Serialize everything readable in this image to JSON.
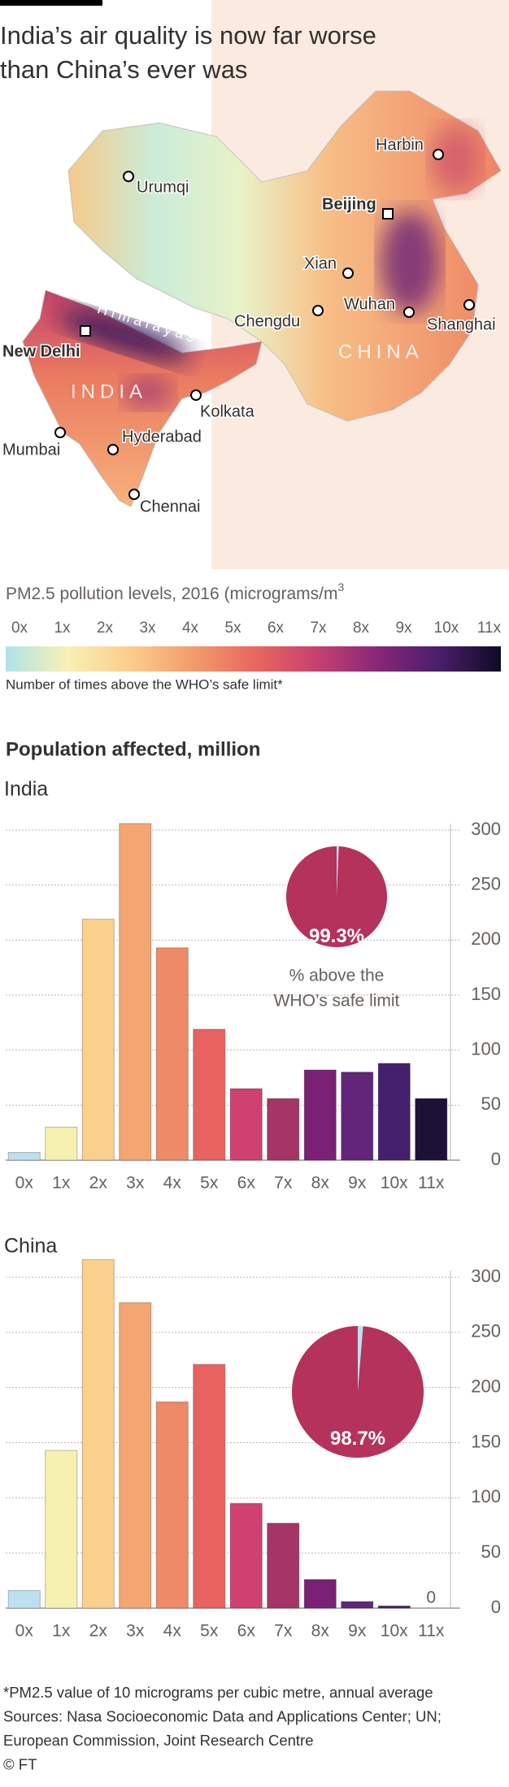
{
  "header": {
    "title_lines": [
      "India’s air quality is now far worse",
      "than China’s ever was"
    ]
  },
  "map": {
    "cities": [
      {
        "name": "Harbin",
        "capital": false
      },
      {
        "name": "Urumqi",
        "capital": false
      },
      {
        "name": "Beijing",
        "capital": true
      },
      {
        "name": "Xian",
        "capital": false
      },
      {
        "name": "Chengdu",
        "capital": false
      },
      {
        "name": "Wuhan",
        "capital": false
      },
      {
        "name": "Shanghai",
        "capital": false
      },
      {
        "name": "New Delhi",
        "capital": true
      },
      {
        "name": "Kolkata",
        "capital": false
      },
      {
        "name": "Mumbai",
        "capital": false
      },
      {
        "name": "Hyderabad",
        "capital": false
      },
      {
        "name": "Chennai",
        "capital": false
      }
    ],
    "regions": [
      "Himalayas",
      "INDIA",
      "CHINA"
    ]
  },
  "legend": {
    "title": "PM2.5 pollution levels, 2016 (micrograms/m",
    "title_superscript": "3",
    "ticks": [
      "0x",
      "1x",
      "2x",
      "3x",
      "4x",
      "5x",
      "6x",
      "7x",
      "8x",
      "9x",
      "10x",
      "11x"
    ],
    "colors": [
      "#aee3e8",
      "#f8f0b5",
      "#fbce8c",
      "#f29d6d",
      "#e9685f",
      "#c8426f",
      "#8a2679",
      "#4a1f6b",
      "#0f0a26"
    ],
    "note": "Number of times above the WHO’s safe limit*"
  },
  "section_title": "Population affected, million",
  "chart_data": [
    {
      "type": "bar",
      "title": "India",
      "categories": [
        "0x",
        "1x",
        "2x",
        "3x",
        "4x",
        "5x",
        "6x",
        "7x",
        "8x",
        "9x",
        "10x",
        "11x"
      ],
      "values": [
        7,
        30,
        219,
        306,
        193,
        119,
        65,
        56,
        82,
        80,
        88,
        56
      ],
      "colors": [
        "#bde0ee",
        "#f6f0b0",
        "#fbd08c",
        "#f4a672",
        "#ee8a65",
        "#e8635f",
        "#cf4170",
        "#a43566",
        "#7a2176",
        "#62257a",
        "#44206c",
        "#1d1137"
      ],
      "ylim": [
        0,
        300
      ],
      "yticks": [
        0,
        50,
        100,
        150,
        200,
        250,
        300
      ],
      "grid": true,
      "pie": {
        "values": [
          99.3
        ],
        "value_labels": [
          "99.3%"
        ],
        "color": "#b5325a",
        "rest_color": "#bde0ee",
        "caption": [
          "% above the",
          "WHO’s safe limit"
        ]
      }
    },
    {
      "type": "bar",
      "title": "China",
      "categories": [
        "0x",
        "1x",
        "2x",
        "3x",
        "4x",
        "5x",
        "6x",
        "7x",
        "8x",
        "9x",
        "10x",
        "11x"
      ],
      "values": [
        16,
        143,
        316,
        277,
        187,
        221,
        95,
        77,
        26,
        6,
        2,
        0
      ],
      "colors": [
        "#bde0ee",
        "#f6f0b0",
        "#fbd08c",
        "#f4a672",
        "#ee8a65",
        "#e8635f",
        "#cf4170",
        "#a43566",
        "#7a2176",
        "#62257a",
        "#44206c",
        "#1d1137"
      ],
      "ylim": [
        0,
        300
      ],
      "yticks": [
        0,
        50,
        100,
        150,
        200,
        250,
        300
      ],
      "grid": true,
      "pie": {
        "values": [
          98.7
        ],
        "value_labels": [
          "98.7%"
        ],
        "color": "#b5325a",
        "rest_color": "#bde0ee",
        "caption": []
      }
    }
  ],
  "footer": [
    "*PM2.5 value of 10 micrograms per cubic metre, annual average",
    "Sources: Nasa Socioeconomic Data and Applications Center; UN;",
    "European Commission, Joint Research Centre",
    "© FT"
  ]
}
